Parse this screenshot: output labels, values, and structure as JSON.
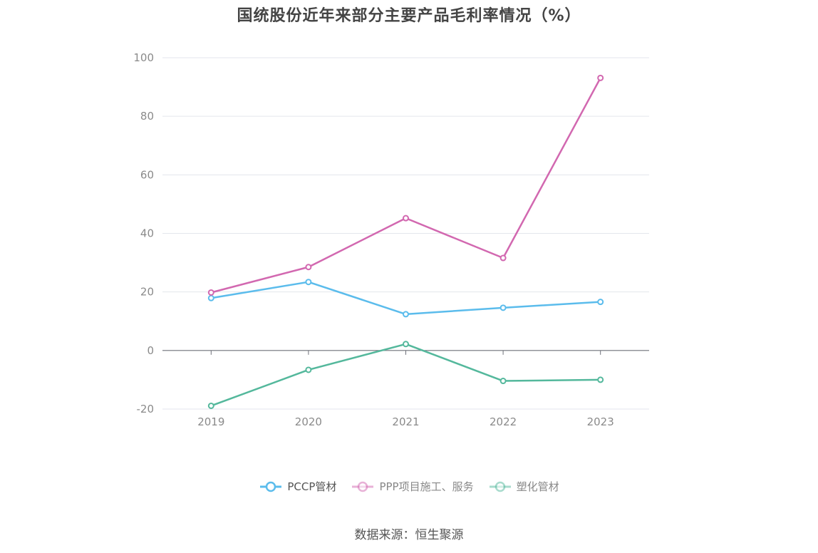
{
  "chart_data": {
    "type": "line",
    "title": "国统股份近年来部分主要产品毛利率情况（%）",
    "categories": [
      "2019",
      "2020",
      "2021",
      "2022",
      "2023"
    ],
    "ylim": [
      -20,
      100
    ],
    "yticks": [
      -20,
      0,
      20,
      40,
      60,
      80,
      100
    ],
    "grid": true,
    "legend_position": "bottom",
    "series": [
      {
        "name": "PCCP管材",
        "color": "#5bbcec",
        "values": [
          17.9,
          23.4,
          12.4,
          14.6,
          16.6
        ]
      },
      {
        "name": "PPP项目施工、服务",
        "color": "#d268b0",
        "values": [
          19.8,
          28.5,
          45.2,
          31.6,
          93.1
        ]
      },
      {
        "name": "塑化管材",
        "color": "#54b89c",
        "values": [
          -18.9,
          -6.6,
          2.2,
          -10.4,
          -10.0
        ]
      }
    ]
  },
  "source": "数据来源：恒生聚源"
}
